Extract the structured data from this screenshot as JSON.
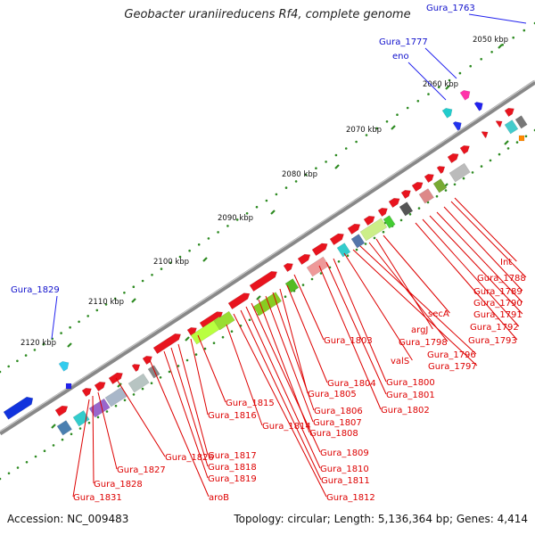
{
  "title": "Geobacter uraniireducens Rf4, complete genome",
  "footer": {
    "accession": "Accession: NC_009483",
    "summary": "Topology: circular; Length: 5,136,364 bp; Genes: 4,414"
  },
  "colors": {
    "backbone": "#888888",
    "tick": "#2e8b22",
    "forward_label": "#1010cc",
    "reverse_label": "#dd0000",
    "leader_forward": "#2222ee",
    "leader_reverse": "#dd0000"
  },
  "ticks": [
    {
      "label": "2050 kbp"
    },
    {
      "label": "2060 kbp"
    },
    {
      "label": "2070 kbp"
    },
    {
      "label": "2080 kbp"
    },
    {
      "label": "2090 kbp"
    },
    {
      "label": "2100 kbp"
    },
    {
      "label": "2110 kbp"
    },
    {
      "label": "2120 kbp"
    }
  ],
  "forward_labels": [
    "Gura_1763",
    "Gura_1777",
    "eno",
    "Gura_1829"
  ],
  "reverse_labels": [
    "Int",
    "Gura_1788",
    "Gura_1789",
    "Gura_1790",
    "Gura_1791",
    "Gura_1792",
    "Gura_1793",
    "secA",
    "argJ",
    "Gura_1798",
    "Gura_1796",
    "Gura_1797",
    "valS",
    "Gura_1803",
    "Gura_1800",
    "Gura_1801",
    "Gura_1802",
    "Gura_1804",
    "Gura_1805",
    "Gura_1806",
    "Gura_1807",
    "Gura_1808",
    "Gura_1809",
    "Gura_1810",
    "Gura_1811",
    "Gura_1812",
    "Gura_1815",
    "Gura_1816",
    "Gura_1814",
    "Gura_1817",
    "Gura_1818",
    "Gura_1819",
    "aroB",
    "Gura_1826",
    "Gura_1827",
    "Gura_1828",
    "Gura_1831"
  ]
}
